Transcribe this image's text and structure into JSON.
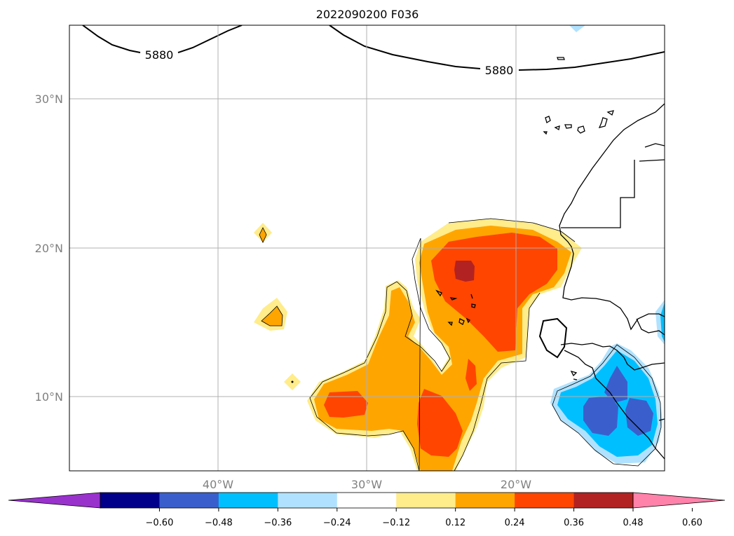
{
  "title": "2022090200 F036",
  "map": {
    "lat_labels": [
      "30°N",
      "20°N",
      "10°N"
    ],
    "lon_labels": [
      "40°W",
      "30°W",
      "20°W"
    ],
    "contour_labels": [
      "5880",
      "5880"
    ],
    "gridlines": true
  },
  "colorbar": {
    "ticks": [
      "−0.60",
      "−0.48",
      "−0.36",
      "−0.24",
      "−0.12",
      "0.12",
      "0.24",
      "0.36",
      "0.48",
      "0.60"
    ],
    "colors": [
      "#9932cc",
      "#00008b",
      "#3a5fcd",
      "#00bfff",
      "#b0e2ff",
      "#ffffff",
      "#ffec8b",
      "#ffa500",
      "#ff4500",
      "#b22222",
      "#ff82ab"
    ],
    "extend": "both"
  }
}
